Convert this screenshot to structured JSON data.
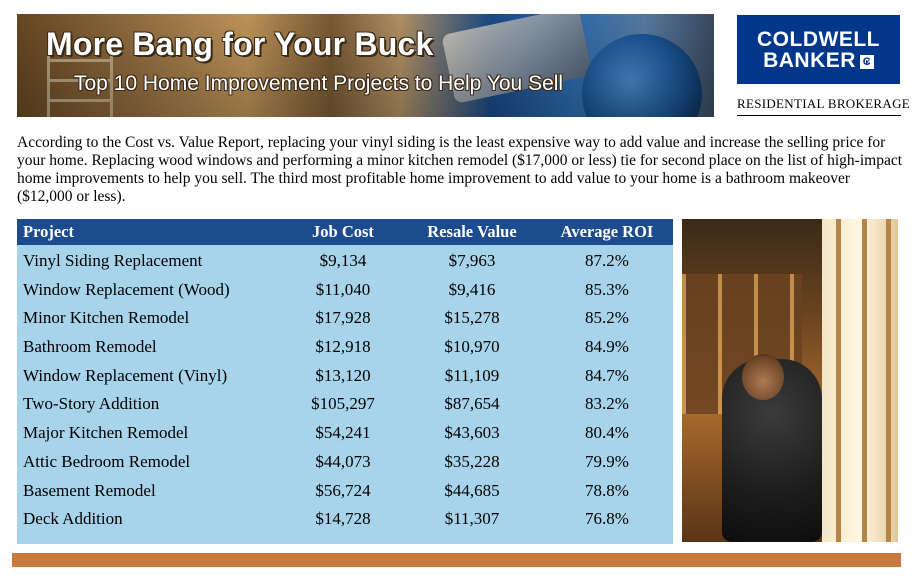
{
  "banner": {
    "title": "More Bang for Your Buck",
    "subtitle": "Top 10 Home Improvement Projects to Help You Sell"
  },
  "logo": {
    "line1": "COLDWELL",
    "line2": "BANKER",
    "subtitle": "RESIDENTIAL BROKERAGE"
  },
  "intro": "According to the Cost vs. Value Report, replacing your vinyl siding is the least expensive way to add value and increase the selling price for your home. Replacing wood windows and performing a minor kitchen remodel ($17,000 or less) tie for second place on the list of high-impact home improvements to help you sell. The third most profitable home improvement to add value to your home is a bathroom makeover ($12,000 or less).",
  "table": {
    "headers": [
      "Project",
      "Job Cost",
      "Resale Value",
      "Average ROI"
    ],
    "rows": [
      [
        "Vinyl Siding Replacement",
        "$9,134",
        "$7,963",
        "87.2%"
      ],
      [
        "Window Replacement (Wood)",
        "$11,040",
        "$9,416",
        "85.3%"
      ],
      [
        "Minor Kitchen Remodel",
        "$17,928",
        "$15,278",
        "85.2%"
      ],
      [
        "Bathroom Remodel",
        "$12,918",
        "$10,970",
        "84.9%"
      ],
      [
        "Window Replacement (Vinyl)",
        "$13,120",
        "$11,109",
        "84.7%"
      ],
      [
        "Two-Story Addition",
        "$105,297",
        "$87,654",
        "83.2%"
      ],
      [
        "Major Kitchen Remodel",
        "$54,241",
        "$43,603",
        "80.4%"
      ],
      [
        "Attic Bedroom Remodel",
        "$44,073",
        "$35,228",
        "79.9%"
      ],
      [
        "Basement Remodel",
        "$56,724",
        "$44,685",
        "78.8%"
      ],
      [
        "Deck Addition",
        "$14,728",
        "$11,307",
        "76.8%"
      ]
    ]
  },
  "colors": {
    "header_blue": "#1d4c8e",
    "table_bg": "#a7d3eb",
    "logo_blue": "#00378a",
    "bottom_bar": "#c87a3e"
  }
}
